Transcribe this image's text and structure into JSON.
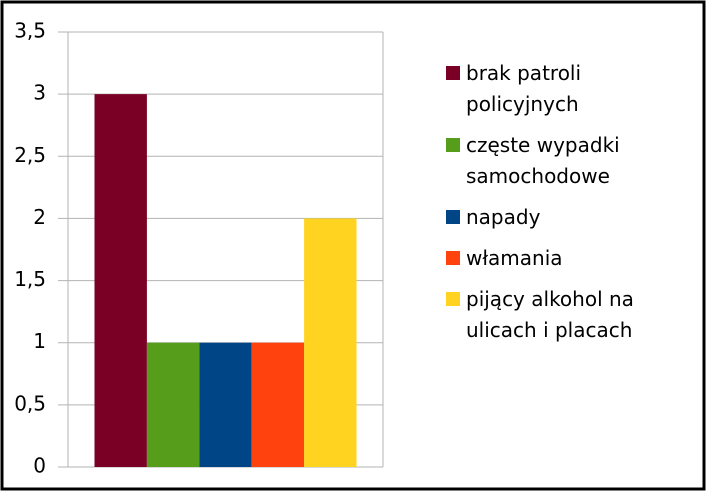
{
  "chart_data": {
    "type": "bar",
    "categories": [
      null
    ],
    "series": [
      {
        "name": "brak patroli policyjnych",
        "color": "#7b0025",
        "values": [
          3
        ]
      },
      {
        "name": "częste wypadki samochodowe",
        "color": "#579d1c",
        "values": [
          1
        ]
      },
      {
        "name": "napady",
        "color": "#004586",
        "values": [
          1
        ]
      },
      {
        "name": "włamania",
        "color": "#ff420e",
        "values": [
          1
        ]
      },
      {
        "name": "pijący alkohol na ulicach i placach",
        "color": "#ffd320",
        "values": [
          2
        ]
      }
    ],
    "ylim": [
      0,
      3.5
    ],
    "yticks": [
      0,
      {
        "value": 0.5,
        "label": "0,5"
      },
      1,
      {
        "value": 1.5,
        "label": "1,5"
      },
      2,
      {
        "value": 2.5,
        "label": "2,5"
      },
      3,
      {
        "value": 3.5,
        "label": "3,5"
      }
    ],
    "grid": true,
    "legend": "right"
  }
}
